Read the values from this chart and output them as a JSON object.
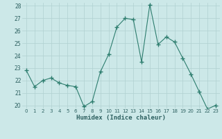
{
  "x": [
    0,
    1,
    2,
    3,
    4,
    5,
    6,
    7,
    8,
    9,
    10,
    11,
    12,
    13,
    14,
    15,
    16,
    17,
    18,
    19,
    20,
    21,
    22,
    23
  ],
  "y": [
    22.8,
    21.5,
    22.0,
    22.2,
    21.8,
    21.6,
    21.5,
    19.9,
    20.3,
    22.7,
    24.1,
    26.3,
    27.0,
    26.9,
    23.5,
    28.1,
    24.9,
    25.5,
    25.1,
    23.8,
    22.5,
    21.1,
    19.7,
    20.0
  ],
  "title": "",
  "xlabel": "Humidex (Indice chaleur)",
  "ylabel": "",
  "ylim": [
    19.75,
    28.25
  ],
  "xlim": [
    -0.5,
    23.5
  ],
  "yticks": [
    20,
    21,
    22,
    23,
    24,
    25,
    26,
    27,
    28
  ],
  "xtick_labels": [
    "0",
    "1",
    "2",
    "3",
    "4",
    "5",
    "6",
    "7",
    "8",
    "9",
    "10",
    "11",
    "12",
    "13",
    "14",
    "15",
    "16",
    "17",
    "18",
    "19",
    "20",
    "21",
    "22",
    "23"
  ],
  "line_color": "#2d7d6e",
  "marker_color": "#2d7d6e",
  "bg_color": "#cce8e8",
  "grid_color": "#b0d0d0"
}
